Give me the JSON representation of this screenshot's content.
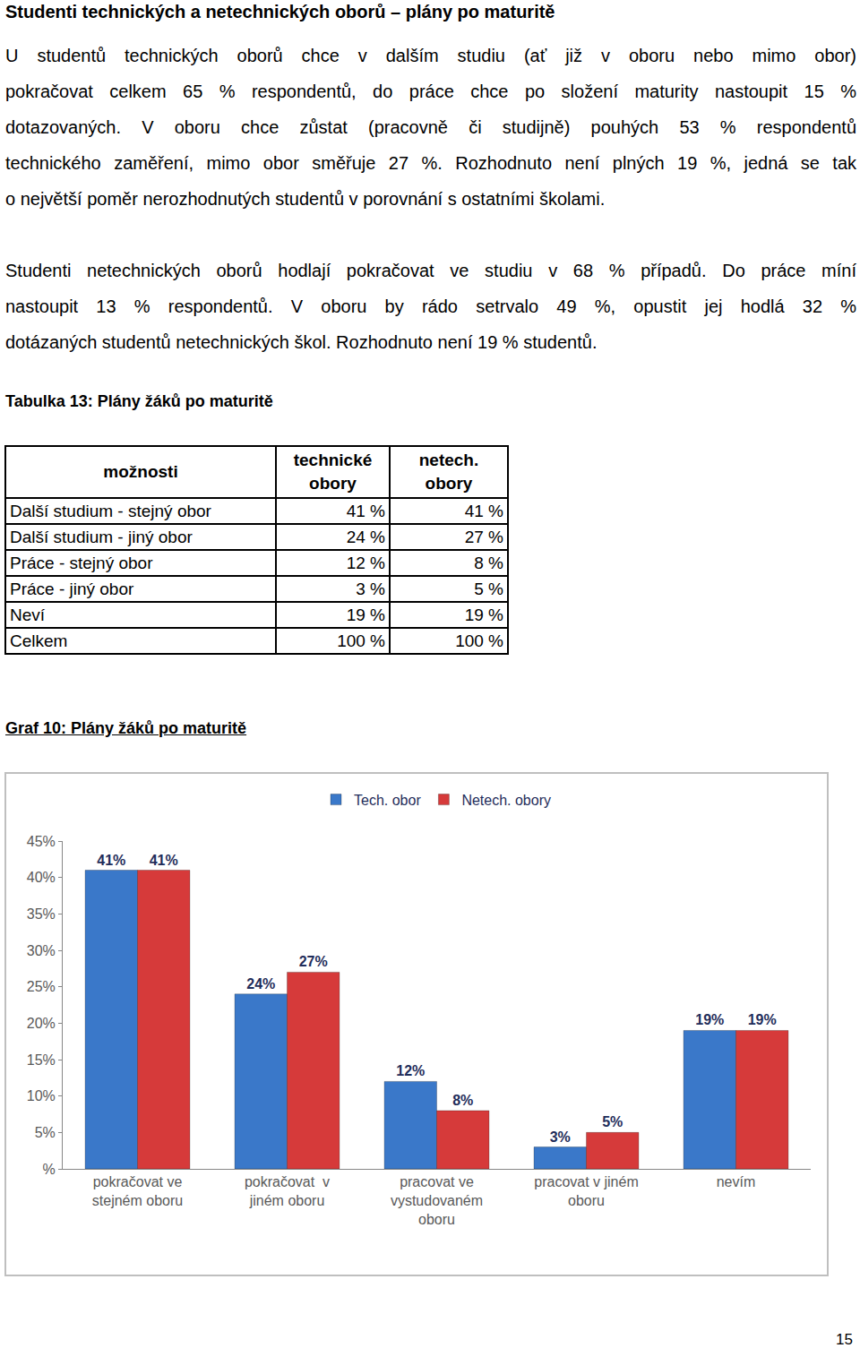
{
  "document": {
    "heading": "Studenti technických a netechnických oborů – plány po maturitě",
    "paragraphs": [
      [
        "U studentů technických oborů chce v dalším studiu (ať již v oboru nebo mimo obor)",
        "pokračovat celkem 65 % respondentů, do práce chce po složení maturity nastoupit 15 %",
        "dotazovaných. V oboru chce zůstat (pracovně či studijně) pouhých 53 % respondentů",
        "technického zaměření, mimo obor směřuje 27 %. Rozhodnuto není plných 19 %, jedná se tak",
        "o největší poměr nerozhodnutých studentů v porovnání s ostatními školami."
      ],
      [
        "Studenti netechnických oborů hodlají pokračovat ve studiu v 68 % případů. Do práce míní",
        "nastoupit 13 % respondentů. V oboru by rádo setrvalo 49 %, opustit jej hodlá 32 %",
        "dotázaných studentů netechnických škol. Rozhodnuto není 19 % studentů."
      ]
    ],
    "table": {
      "caption": "Tabulka 13: Plány žáků po maturitě",
      "header": [
        "možnosti",
        "technické obory",
        "netech. obory"
      ],
      "rows": [
        [
          "Další studium - stejný obor",
          "41 %",
          "41 %"
        ],
        [
          "Další studium - jiný obor",
          "24 %",
          "27 %"
        ],
        [
          "Práce - stejný obor",
          "12 %",
          "8 %"
        ],
        [
          "Práce - jiný obor",
          "3 %",
          "5 %"
        ],
        [
          "Neví",
          "19 %",
          "19 %"
        ],
        [
          "Celkem",
          "100 %",
          "100 %"
        ]
      ]
    },
    "graph_caption": "Graf 10: Plány žáků po maturitě",
    "page_number": "15"
  },
  "chart_data": {
    "type": "bar",
    "categories": [
      "pokračovat ve\nstejném oboru",
      "pokračovat  v\njiném oboru",
      "pracovat ve\nvystudovaném\noboru",
      "pracovat v jiném\noboru",
      "nevím"
    ],
    "series": [
      {
        "name": "Tech. obor",
        "color": "#3a78c9",
        "values": [
          41,
          24,
          12,
          3,
          19
        ],
        "value_labels": [
          "41%",
          "24%",
          "12%",
          "3%",
          "19%"
        ]
      },
      {
        "name": "Netech. obory",
        "color": "#d63a3a",
        "values": [
          41,
          27,
          8,
          5,
          19
        ],
        "value_labels": [
          "41%",
          "27%",
          "8%",
          "5%",
          "19%"
        ]
      }
    ],
    "ylim": [
      0,
      45
    ],
    "yticks": [
      {
        "value": 0,
        "label": "%"
      },
      {
        "value": 5,
        "label": "5%"
      },
      {
        "value": 10,
        "label": "10%"
      },
      {
        "value": 15,
        "label": "15%"
      },
      {
        "value": 20,
        "label": "20%"
      },
      {
        "value": 25,
        "label": "25%"
      },
      {
        "value": 30,
        "label": "30%"
      },
      {
        "value": 35,
        "label": "35%"
      },
      {
        "value": 40,
        "label": "40%"
      },
      {
        "value": 45,
        "label": "45%"
      }
    ],
    "grid": false,
    "legend": "top",
    "data_labels": true
  }
}
